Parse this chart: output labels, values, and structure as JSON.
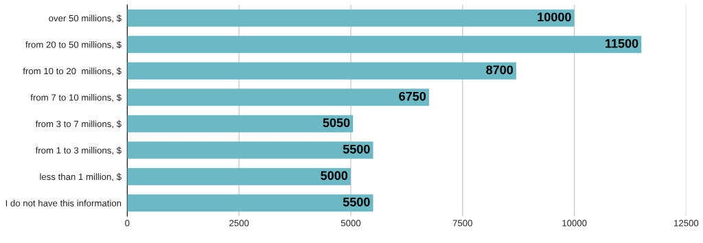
{
  "chart_data": {
    "type": "bar",
    "orientation": "horizontal",
    "categories": [
      "over 50 millions, $",
      "from 20 to 50 millions, $",
      "from 10 to 20  millions, $",
      "from 7 to 10 millions, $",
      "from 3 to 7 millions, $",
      "from 1 to 3 millions, $",
      "less than 1 million, $",
      "I do not have this information"
    ],
    "values": [
      10000,
      11500,
      8700,
      6750,
      5050,
      5500,
      5000,
      5500
    ],
    "color": "#6bb9c4",
    "data_labels": true,
    "grid": "x",
    "xlim": [
      0,
      12500
    ],
    "xticks": [
      0,
      2500,
      5000,
      7500,
      10000,
      12500
    ]
  }
}
